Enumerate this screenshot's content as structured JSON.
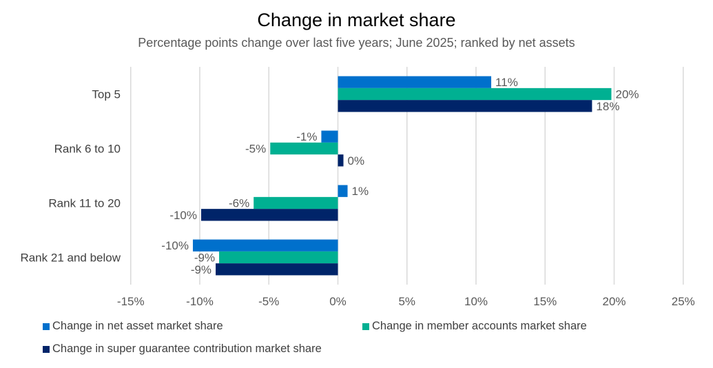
{
  "chart_data": {
    "type": "bar",
    "orientation": "horizontal",
    "title": "Change in market share",
    "subtitle": "Percentage points change over last five years; June 2025; ranked by net assets",
    "categories": [
      "Top 5",
      "Rank 6 to 10",
      "Rank 11 to 20",
      "Rank 21 and below"
    ],
    "series": [
      {
        "name": "Change in net asset market share",
        "color": "#0070CC",
        "values": [
          11.1,
          -1.2,
          0.7,
          -10.5
        ],
        "labels": [
          "11%",
          "-1%",
          "1%",
          "-10%"
        ]
      },
      {
        "name": "Change in member accounts market share",
        "color": "#00B092",
        "values": [
          19.8,
          -4.9,
          -6.1,
          -8.6
        ],
        "labels": [
          "20%",
          "-5%",
          "-6%",
          "-9%"
        ]
      },
      {
        "name": "Change in super guarantee contribution market share",
        "color": "#002469",
        "values": [
          18.4,
          0.4,
          -9.9,
          -8.85
        ],
        "labels": [
          "18%",
          "0%",
          "-10%",
          "-9%"
        ]
      }
    ],
    "xlim": [
      -15,
      25
    ],
    "xticks": [
      -15,
      -10,
      -5,
      0,
      5,
      10,
      15,
      20,
      25
    ],
    "xtick_labels": [
      "-15%",
      "-10%",
      "-5%",
      "0%",
      "5%",
      "10%",
      "15%",
      "20%",
      "25%"
    ],
    "grid": true,
    "legend_position": "bottom"
  }
}
